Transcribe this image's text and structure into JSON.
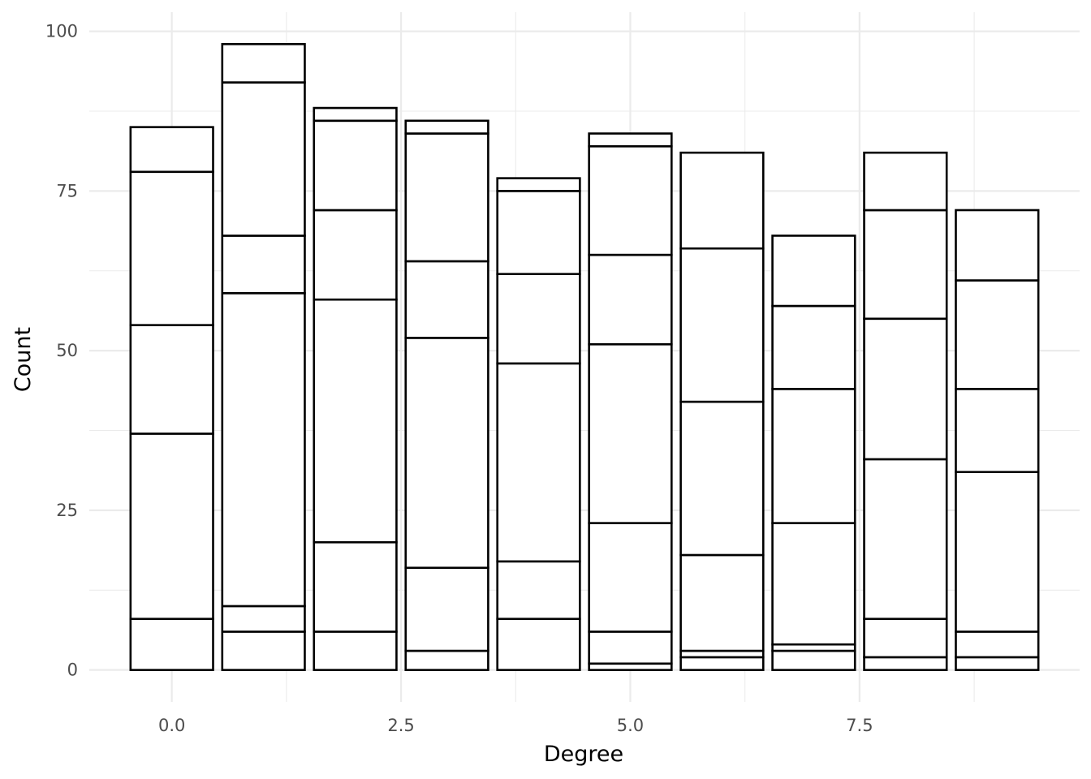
{
  "chart_data": {
    "type": "bar",
    "stacked": true,
    "title": "",
    "xlabel": "Degree",
    "ylabel": "Count",
    "xlim": [
      -0.9,
      9.9
    ],
    "ylim": [
      -5,
      103
    ],
    "x_ticks": [
      0,
      2.5,
      5,
      7.5
    ],
    "x_tick_labels": [
      "0.0",
      "2.5",
      "5.0",
      "7.5"
    ],
    "y_ticks": [
      0,
      25,
      50,
      75,
      100
    ],
    "y_tick_labels": [
      "0",
      "25",
      "50",
      "75",
      "100"
    ],
    "grid": true,
    "legend": "none",
    "bar_fill": "#ffffff",
    "bar_outline": "#000000",
    "grid_color": "#ebebeb",
    "bars": [
      {
        "x": 0,
        "segment_tops": [
          8,
          37,
          54,
          78,
          85
        ]
      },
      {
        "x": 1,
        "segment_tops": [
          6,
          10,
          59,
          68,
          92,
          98
        ]
      },
      {
        "x": 2,
        "segment_tops": [
          6,
          20,
          58,
          72,
          86,
          88
        ]
      },
      {
        "x": 3,
        "segment_tops": [
          3,
          16,
          52,
          64,
          84,
          86
        ]
      },
      {
        "x": 4,
        "segment_tops": [
          8,
          17,
          48,
          62,
          75,
          77
        ]
      },
      {
        "x": 5,
        "segment_tops": [
          1,
          6,
          23,
          51,
          65,
          82,
          84
        ]
      },
      {
        "x": 6,
        "segment_tops": [
          2,
          3,
          18,
          42,
          66,
          81
        ]
      },
      {
        "x": 7,
        "segment_tops": [
          3,
          4,
          23,
          44,
          57,
          68
        ]
      },
      {
        "x": 8,
        "segment_tops": [
          2,
          8,
          33,
          55,
          72,
          81
        ]
      },
      {
        "x": 9,
        "segment_tops": [
          2,
          6,
          31,
          44,
          61,
          72
        ]
      }
    ]
  }
}
